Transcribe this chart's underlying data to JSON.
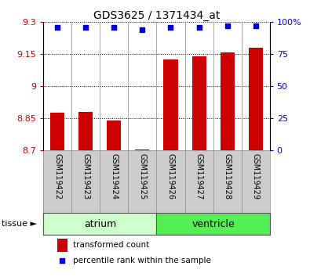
{
  "title": "GDS3625 / 1371434_at",
  "samples": [
    "GSM119422",
    "GSM119423",
    "GSM119424",
    "GSM119425",
    "GSM119426",
    "GSM119427",
    "GSM119428",
    "GSM119429"
  ],
  "bar_values": [
    8.875,
    8.88,
    8.84,
    8.705,
    9.125,
    9.14,
    9.16,
    9.18
  ],
  "percentile_values": [
    96,
    96,
    96,
    94,
    96,
    96,
    97,
    97
  ],
  "bar_color": "#cc0000",
  "dot_color": "#0000cc",
  "ylim_left": [
    8.7,
    9.3
  ],
  "ylim_right": [
    0,
    100
  ],
  "yticks_left": [
    8.7,
    8.85,
    9.0,
    9.15,
    9.3
  ],
  "yticks_right": [
    0,
    25,
    50,
    75,
    100
  ],
  "ytick_labels_left": [
    "8.7",
    "8.85",
    "9",
    "9.15",
    "9.3"
  ],
  "ytick_labels_right": [
    "0",
    "25",
    "50",
    "75",
    "100%"
  ],
  "tissue_label": "tissue ►",
  "legend_red_label": "transformed count",
  "legend_blue_label": "percentile rank within the sample",
  "sample_bg_color": "#cccccc",
  "atrium_color": "#ccffcc",
  "ventricle_color": "#55ee55",
  "background_color": "#ffffff"
}
